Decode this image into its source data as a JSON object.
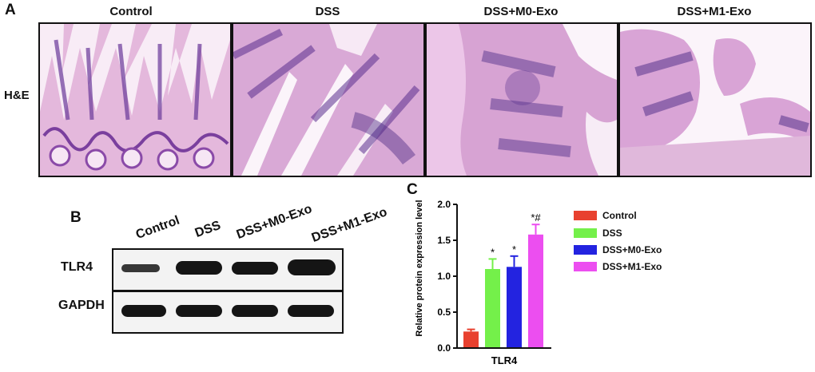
{
  "panel_letters": {
    "a": "A",
    "b": "B",
    "c": "C"
  },
  "he": {
    "row_label": "H&E",
    "columns": [
      "Control",
      "DSS",
      "DSS+M0-Exo",
      "DSS+M1-Exo"
    ]
  },
  "blot": {
    "lanes": [
      "Control",
      "DSS",
      "DSS+M0-Exo",
      "DSS+M1-Exo"
    ],
    "rows": [
      "TLR4",
      "GAPDH"
    ]
  },
  "colors": {
    "control": "#e8412f",
    "dss": "#74f04a",
    "m0": "#2323e0",
    "m1": "#ec4ef0"
  },
  "chart_data": {
    "type": "bar",
    "title": "",
    "xlabel": "TLR4",
    "ylabel": "Relative protein expression level",
    "ylim": [
      0,
      2.0
    ],
    "yticks": [
      "0.0",
      "0.5",
      "1.0",
      "1.5",
      "2.0"
    ],
    "categories": [
      "TLR4"
    ],
    "series": [
      {
        "name": "Control",
        "value": 0.23,
        "error": 0.03,
        "annotation": "",
        "color": "#e8412f"
      },
      {
        "name": "DSS",
        "value": 1.1,
        "error": 0.14,
        "annotation": "*",
        "color": "#74f04a"
      },
      {
        "name": "DSS+M0-Exo",
        "value": 1.13,
        "error": 0.15,
        "annotation": "*",
        "color": "#2323e0"
      },
      {
        "name": "DSS+M1-Exo",
        "value": 1.58,
        "error": 0.14,
        "annotation": "*#",
        "color": "#ec4ef0"
      }
    ],
    "legend_position": "right"
  }
}
